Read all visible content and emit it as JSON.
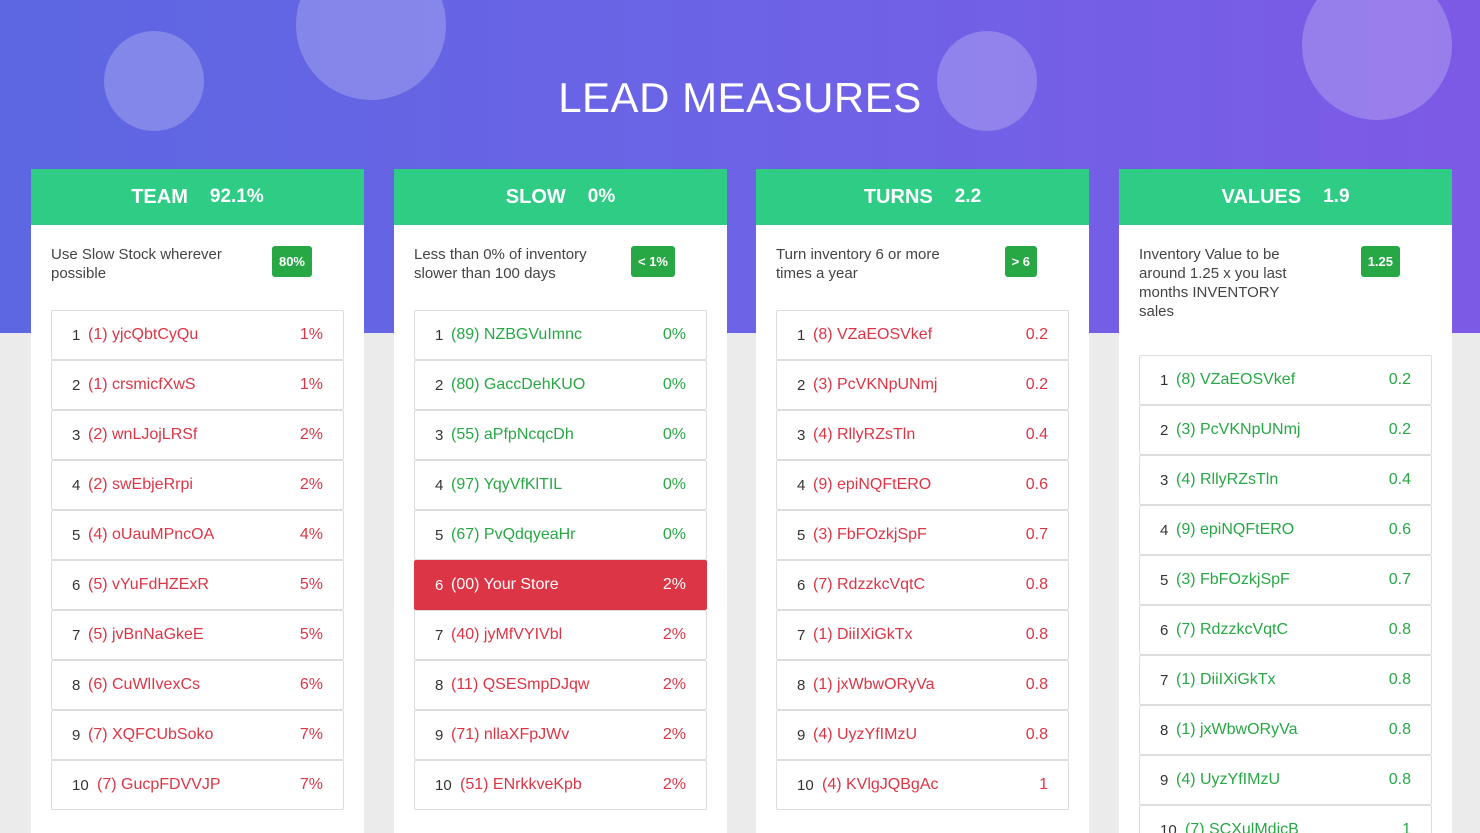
{
  "title": "LEAD MEASURES",
  "cards": [
    {
      "name": "TEAM",
      "value": "92.1%",
      "description": "Use Slow Stock wherever possible",
      "target": "80%",
      "items": [
        {
          "rank": "1",
          "name": "(1) yjcQbtCyQu",
          "value": "1%",
          "color": "red"
        },
        {
          "rank": "2",
          "name": "(1) crsmicfXwS",
          "value": "1%",
          "color": "red"
        },
        {
          "rank": "3",
          "name": "(2) wnLJojLRSf",
          "value": "2%",
          "color": "red"
        },
        {
          "rank": "4",
          "name": "(2) swEbjeRrpi",
          "value": "2%",
          "color": "red"
        },
        {
          "rank": "5",
          "name": "(4) oUauMPncOA",
          "value": "4%",
          "color": "red"
        },
        {
          "rank": "6",
          "name": "(5) vYuFdHZExR",
          "value": "5%",
          "color": "red"
        },
        {
          "rank": "7",
          "name": "(5) jvBnNaGkeE",
          "value": "5%",
          "color": "red"
        },
        {
          "rank": "8",
          "name": "(6) CuWlIvexCs",
          "value": "6%",
          "color": "red"
        },
        {
          "rank": "9",
          "name": "(7) XQFCUbSoko",
          "value": "7%",
          "color": "red"
        },
        {
          "rank": "10",
          "name": "(7) GucpFDVVJP",
          "value": "7%",
          "color": "red"
        }
      ]
    },
    {
      "name": "SLOW",
      "value": "0%",
      "description": "Less than 0% of inventory slower than 100 days",
      "target": "< 1%",
      "items": [
        {
          "rank": "1",
          "name": "(89) NZBGVuImnc",
          "value": "0%",
          "color": "green"
        },
        {
          "rank": "2",
          "name": "(80) GaccDehKUO",
          "value": "0%",
          "color": "green"
        },
        {
          "rank": "3",
          "name": "(55) aPfpNcqcDh",
          "value": "0%",
          "color": "green"
        },
        {
          "rank": "4",
          "name": "(97) YqyVfKlTIL",
          "value": "0%",
          "color": "green"
        },
        {
          "rank": "5",
          "name": "(67) PvQdqyeaHr",
          "value": "0%",
          "color": "green"
        },
        {
          "rank": "6",
          "name": "(00) Your Store",
          "value": "2%",
          "color": "highlight"
        },
        {
          "rank": "7",
          "name": "(40) jyMfVYIVbl",
          "value": "2%",
          "color": "red"
        },
        {
          "rank": "8",
          "name": "(11) QSESmpDJqw",
          "value": "2%",
          "color": "red"
        },
        {
          "rank": "9",
          "name": "(71) nllaXFpJWv",
          "value": "2%",
          "color": "red"
        },
        {
          "rank": "10",
          "name": "(51) ENrkkveKpb",
          "value": "2%",
          "color": "red"
        }
      ]
    },
    {
      "name": "TURNS",
      "value": "2.2",
      "description": "Turn inventory 6 or more times a year",
      "target": "> 6",
      "items": [
        {
          "rank": "1",
          "name": "(8) VZaEOSVkef",
          "value": "0.2",
          "color": "red"
        },
        {
          "rank": "2",
          "name": "(3) PcVKNpUNmj",
          "value": "0.2",
          "color": "red"
        },
        {
          "rank": "3",
          "name": "(4) RllyRZsTln",
          "value": "0.4",
          "color": "red"
        },
        {
          "rank": "4",
          "name": "(9) epiNQFtERO",
          "value": "0.6",
          "color": "red"
        },
        {
          "rank": "5",
          "name": "(3) FbFOzkjSpF",
          "value": "0.7",
          "color": "red"
        },
        {
          "rank": "6",
          "name": "(7) RdzzkcVqtC",
          "value": "0.8",
          "color": "red"
        },
        {
          "rank": "7",
          "name": "(1) DiiIXiGkTx",
          "value": "0.8",
          "color": "red"
        },
        {
          "rank": "8",
          "name": "(1) jxWbwORyVa",
          "value": "0.8",
          "color": "red"
        },
        {
          "rank": "9",
          "name": "(4) UyzYfIMzU",
          "value": "0.8",
          "color": "red"
        },
        {
          "rank": "10",
          "name": "(4) KVlgJQBgAc",
          "value": "1",
          "color": "red"
        }
      ]
    },
    {
      "name": "VALUES",
      "value": "1.9",
      "description": "Inventory Value to be around 1.25 x you last months INVENTORY sales",
      "target": "1.25",
      "items": [
        {
          "rank": "1",
          "name": "(8) VZaEOSVkef",
          "value": "0.2",
          "color": "green"
        },
        {
          "rank": "2",
          "name": "(3) PcVKNpUNmj",
          "value": "0.2",
          "color": "green"
        },
        {
          "rank": "3",
          "name": "(4) RllyRZsTln",
          "value": "0.4",
          "color": "green"
        },
        {
          "rank": "4",
          "name": "(9) epiNQFtERO",
          "value": "0.6",
          "color": "green"
        },
        {
          "rank": "5",
          "name": "(3) FbFOzkjSpF",
          "value": "0.7",
          "color": "green"
        },
        {
          "rank": "6",
          "name": "(7) RdzzkcVqtC",
          "value": "0.8",
          "color": "green"
        },
        {
          "rank": "7",
          "name": "(1) DiiIXiGkTx",
          "value": "0.8",
          "color": "green"
        },
        {
          "rank": "8",
          "name": "(1) jxWbwORyVa",
          "value": "0.8",
          "color": "green"
        },
        {
          "rank": "9",
          "name": "(4) UyzYfIMzU",
          "value": "0.8",
          "color": "green"
        },
        {
          "rank": "10",
          "name": "(7) SCXulMdjcB",
          "value": "1",
          "color": "green"
        }
      ]
    }
  ]
}
